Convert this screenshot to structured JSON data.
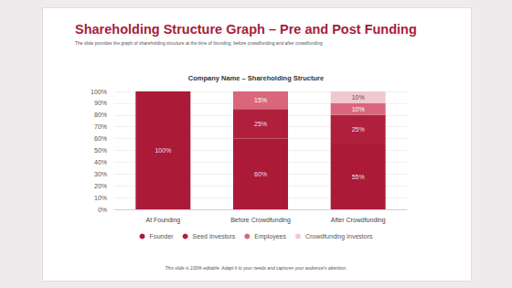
{
  "slide": {
    "title": "Shareholding Structure Graph – Pre and Post Funding",
    "subtitle": "The slide provides the graph of shareholding structure at the time of founding, before crowdfunding and after crowdfunding",
    "footer": "This slide is 100% editable. Adapt it to your needs and captures your audience's attention."
  },
  "chart_data": {
    "type": "bar",
    "title": "Company Name – Shareholding Structure",
    "categories": [
      "At Founding",
      "Before Crowdfunding",
      "After Crowdfunding"
    ],
    "series": [
      {
        "name": "Founder",
        "color": "#ab1a37",
        "values": [
          100,
          60,
          55
        ],
        "value_labels": [
          "100%",
          "60%",
          "55%"
        ]
      },
      {
        "name": "Seed Investors",
        "color": "#b0203d",
        "values": [
          null,
          25,
          25
        ],
        "value_labels": [
          null,
          "25%",
          "25%"
        ]
      },
      {
        "name": "Employees",
        "color": "#d9667d",
        "values": [
          null,
          15,
          10
        ],
        "value_labels": [
          null,
          "15%",
          "10%"
        ]
      },
      {
        "name": "Crowdfunding Investors",
        "color": "#f1c8d0",
        "values": [
          null,
          null,
          10
        ],
        "value_labels": [
          null,
          null,
          "10%"
        ]
      }
    ],
    "ylim": [
      0,
      100
    ],
    "yticks": [
      {
        "value": 0,
        "label": "0%"
      },
      {
        "value": 10,
        "label": "10%"
      },
      {
        "value": 20,
        "label": "20%"
      },
      {
        "value": 30,
        "label": "30%"
      },
      {
        "value": 40,
        "label": "40%"
      },
      {
        "value": 50,
        "label": "50%"
      },
      {
        "value": 60,
        "label": "60%"
      },
      {
        "value": 70,
        "label": "70%"
      },
      {
        "value": 80,
        "label": "80%"
      },
      {
        "value": 90,
        "label": "90%"
      },
      {
        "value": 100,
        "label": "100%"
      }
    ],
    "stacked": true,
    "data_labels": true,
    "grid": true,
    "legend": "bottom"
  }
}
